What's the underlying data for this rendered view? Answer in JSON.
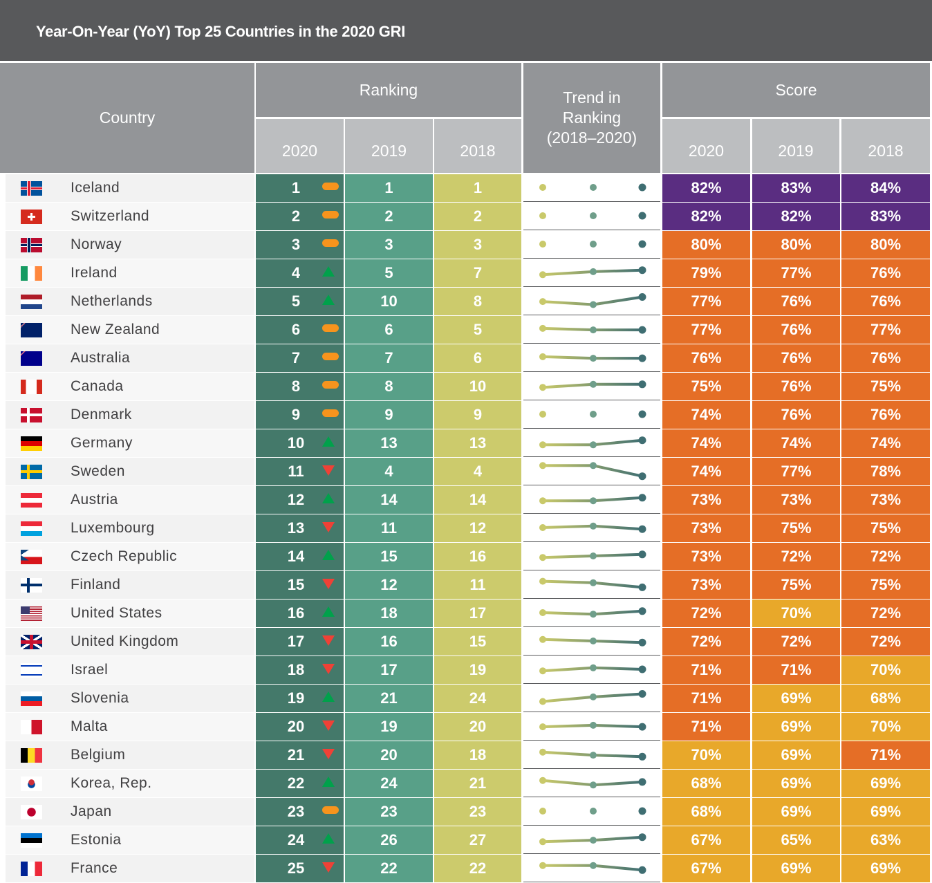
{
  "title": "Year-On-Year (YoY) Top 25 Countries in the 2020 GRI",
  "headers": {
    "country": "Country",
    "ranking": "Ranking",
    "trend": "Trend in Ranking (2018–2020)",
    "score": "Score",
    "years": [
      "2020",
      "2019",
      "2018"
    ]
  },
  "colors": {
    "rank_2020": "#44796a",
    "rank_2019": "#58a088",
    "rank_2018": "#cccb6c",
    "score_high": "#5a2d81",
    "score_mid": "#e56e26",
    "score_low": "#e8a82a",
    "trend_same": "#f7941d",
    "trend_up": "#00a14b",
    "trend_down": "#ef4136"
  },
  "chart_data": {
    "type": "table",
    "title": "Year-On-Year (YoY) Top 25 Countries in the 2020 GRI",
    "columns": [
      "Country",
      "Ranking 2020",
      "Ranking 2019",
      "Ranking 2018",
      "Trend in Ranking (2018–2020)",
      "Score 2020",
      "Score 2019",
      "Score 2018"
    ],
    "rows": [
      {
        "country": "Iceland",
        "flag": "flag-iceland",
        "rank": [
          1,
          1,
          1
        ],
        "trend": "same",
        "score": [
          "82%",
          "83%",
          "84%"
        ]
      },
      {
        "country": "Switzerland",
        "flag": "flag-switzerland",
        "rank": [
          2,
          2,
          2
        ],
        "trend": "same",
        "score": [
          "82%",
          "82%",
          "83%"
        ]
      },
      {
        "country": "Norway",
        "flag": "flag-norway",
        "rank": [
          3,
          3,
          3
        ],
        "trend": "same",
        "score": [
          "80%",
          "80%",
          "80%"
        ]
      },
      {
        "country": "Ireland",
        "flag": "flag-ireland",
        "rank": [
          4,
          5,
          7
        ],
        "trend": "up",
        "score": [
          "79%",
          "77%",
          "76%"
        ]
      },
      {
        "country": "Netherlands",
        "flag": "flag-netherlands",
        "rank": [
          5,
          10,
          8
        ],
        "trend": "up",
        "score": [
          "77%",
          "76%",
          "76%"
        ]
      },
      {
        "country": "New Zealand",
        "flag": "flag-new-zealand",
        "rank": [
          6,
          6,
          5
        ],
        "trend": "same",
        "score": [
          "77%",
          "76%",
          "77%"
        ]
      },
      {
        "country": "Australia",
        "flag": "flag-australia",
        "rank": [
          7,
          7,
          6
        ],
        "trend": "same",
        "score": [
          "76%",
          "76%",
          "76%"
        ]
      },
      {
        "country": "Canada",
        "flag": "flag-canada",
        "rank": [
          8,
          8,
          10
        ],
        "trend": "same",
        "score": [
          "75%",
          "76%",
          "75%"
        ]
      },
      {
        "country": "Denmark",
        "flag": "flag-denmark",
        "rank": [
          9,
          9,
          9
        ],
        "trend": "same",
        "score": [
          "74%",
          "76%",
          "76%"
        ]
      },
      {
        "country": "Germany",
        "flag": "flag-germany",
        "rank": [
          10,
          13,
          13
        ],
        "trend": "up",
        "score": [
          "74%",
          "74%",
          "74%"
        ]
      },
      {
        "country": "Sweden",
        "flag": "flag-sweden",
        "rank": [
          11,
          4,
          4
        ],
        "trend": "down",
        "score": [
          "74%",
          "77%",
          "78%"
        ]
      },
      {
        "country": "Austria",
        "flag": "flag-austria",
        "rank": [
          12,
          14,
          14
        ],
        "trend": "up",
        "score": [
          "73%",
          "73%",
          "73%"
        ]
      },
      {
        "country": "Luxembourg",
        "flag": "flag-luxembourg",
        "rank": [
          13,
          11,
          12
        ],
        "trend": "down",
        "score": [
          "73%",
          "75%",
          "75%"
        ]
      },
      {
        "country": "Czech Republic",
        "flag": "flag-czech-republic",
        "rank": [
          14,
          15,
          16
        ],
        "trend": "up",
        "score": [
          "73%",
          "72%",
          "72%"
        ]
      },
      {
        "country": "Finland",
        "flag": "flag-finland",
        "rank": [
          15,
          12,
          11
        ],
        "trend": "down",
        "score": [
          "73%",
          "75%",
          "75%"
        ]
      },
      {
        "country": "United States",
        "flag": "flag-united-states",
        "rank": [
          16,
          18,
          17
        ],
        "trend": "up",
        "score": [
          "72%",
          "70%",
          "72%"
        ]
      },
      {
        "country": "United Kingdom",
        "flag": "flag-united-kingdom",
        "rank": [
          17,
          16,
          15
        ],
        "trend": "down",
        "score": [
          "72%",
          "72%",
          "72%"
        ]
      },
      {
        "country": "Israel",
        "flag": "flag-israel",
        "rank": [
          18,
          17,
          19
        ],
        "trend": "down",
        "score": [
          "71%",
          "71%",
          "70%"
        ]
      },
      {
        "country": "Slovenia",
        "flag": "flag-slovenia",
        "rank": [
          19,
          21,
          24
        ],
        "trend": "up",
        "score": [
          "71%",
          "69%",
          "68%"
        ]
      },
      {
        "country": "Malta",
        "flag": "flag-malta",
        "rank": [
          20,
          19,
          20
        ],
        "trend": "down",
        "score": [
          "71%",
          "69%",
          "70%"
        ]
      },
      {
        "country": "Belgium",
        "flag": "flag-belgium",
        "rank": [
          21,
          20,
          18
        ],
        "trend": "down",
        "score": [
          "70%",
          "69%",
          "71%"
        ]
      },
      {
        "country": "Korea, Rep.",
        "flag": "flag-korea",
        "rank": [
          22,
          24,
          21
        ],
        "trend": "up",
        "score": [
          "68%",
          "69%",
          "69%"
        ]
      },
      {
        "country": "Japan",
        "flag": "flag-japan",
        "rank": [
          23,
          23,
          23
        ],
        "trend": "same",
        "score": [
          "68%",
          "69%",
          "69%"
        ]
      },
      {
        "country": "Estonia",
        "flag": "flag-estonia",
        "rank": [
          24,
          26,
          27
        ],
        "trend": "up",
        "score": [
          "67%",
          "65%",
          "63%"
        ]
      },
      {
        "country": "France",
        "flag": "flag-france",
        "rank": [
          25,
          22,
          22
        ],
        "trend": "down",
        "score": [
          "67%",
          "69%",
          "69%"
        ]
      }
    ]
  }
}
